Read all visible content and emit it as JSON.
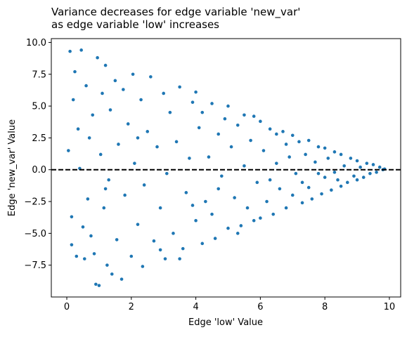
{
  "chart_data": {
    "type": "scatter",
    "title": "Variance decreases for edge variable 'new_var'\nas edge variable 'low' increases",
    "x_label": "Edge 'low' Value",
    "y_label": "Edge 'new_var' Value",
    "xlim": [
      -0.48,
      10.35
    ],
    "ylim": [
      -10.0,
      10.3
    ],
    "xticks": [
      0,
      2,
      4,
      6,
      8,
      10
    ],
    "yticks": [
      {
        "value": -7.5,
        "label": "−7.5"
      },
      {
        "value": -5,
        "label": "−5.0"
      },
      {
        "value": -2.5,
        "label": "−2.5"
      },
      {
        "value": 0,
        "label": "0.0"
      },
      {
        "value": 2.5,
        "label": "2.5"
      },
      {
        "value": 5,
        "label": "5.0"
      },
      {
        "value": 7.5,
        "label": "7.5"
      },
      {
        "value": 10,
        "label": "10.0"
      }
    ],
    "hline": 0,
    "series": [
      {
        "color": "#1f77b4",
        "x": [
          0.05,
          0.1,
          0.15,
          0.15,
          0.2,
          0.25,
          0.3,
          0.35,
          0.4,
          0.45,
          0.5,
          0.55,
          0.6,
          0.65,
          0.7,
          0.75,
          0.8,
          0.85,
          0.9,
          0.95,
          1.0,
          1.05,
          1.1,
          1.15,
          1.2,
          1.25,
          1.3,
          1.35,
          1.4,
          1.5,
          1.55,
          1.6,
          1.7,
          1.75,
          1.8,
          1.9,
          2.0,
          2.05,
          2.1,
          2.2,
          2.3,
          2.35,
          2.4,
          2.5,
          2.6,
          2.7,
          2.8,
          2.9,
          3.0,
          3.05,
          3.1,
          3.2,
          3.3,
          3.4,
          3.5,
          3.6,
          3.7,
          3.8,
          3.9,
          4.0,
          4.0,
          4.1,
          4.2,
          4.3,
          4.4,
          4.5,
          4.5,
          4.6,
          4.7,
          4.8,
          4.9,
          5.0,
          5.0,
          5.1,
          5.2,
          5.3,
          5.4,
          5.5,
          5.5,
          5.6,
          5.7,
          5.8,
          5.9,
          6.0,
          6.0,
          6.1,
          6.2,
          6.3,
          6.4,
          6.5,
          6.5,
          6.6,
          6.7,
          6.8,
          6.9,
          7.0,
          7.0,
          7.1,
          7.2,
          7.3,
          7.4,
          7.5,
          7.5,
          7.6,
          7.7,
          7.8,
          7.9,
          8.0,
          8.0,
          8.1,
          8.2,
          8.3,
          8.4,
          8.5,
          8.5,
          8.6,
          8.7,
          8.8,
          8.9,
          9.0,
          9.0,
          9.1,
          9.2,
          9.3,
          9.4,
          9.5,
          9.6,
          9.7,
          9.8,
          9.85,
          3.5,
          4.2,
          4.7,
          5.3,
          5.8,
          6.3,
          6.8,
          7.3,
          7.8,
          8.3,
          2.2,
          2.9,
          1.2,
          3.9
        ],
        "values": [
          1.5,
          9.3,
          -3.7,
          -5.9,
          5.5,
          7.7,
          -6.8,
          3.2,
          0.1,
          9.4,
          -4.5,
          -7.0,
          6.6,
          -2.3,
          2.5,
          -5.2,
          4.3,
          -6.6,
          -9.0,
          8.8,
          -9.1,
          1.2,
          6.0,
          -3.0,
          8.2,
          -7.5,
          -0.8,
          4.7,
          -8.2,
          7.0,
          -5.5,
          2.0,
          -8.6,
          6.3,
          -2.0,
          3.6,
          -6.8,
          7.5,
          0.5,
          -4.3,
          5.5,
          -7.6,
          -1.2,
          3.0,
          7.3,
          -5.6,
          1.8,
          -3.0,
          6.0,
          -7.0,
          -0.3,
          4.5,
          -5.0,
          2.2,
          6.5,
          -6.2,
          -1.8,
          0.9,
          5.3,
          -4.0,
          6.1,
          3.3,
          -5.8,
          -2.5,
          1.0,
          5.2,
          -3.5,
          -5.4,
          2.8,
          -0.5,
          4.0,
          -4.6,
          5.0,
          1.8,
          -2.2,
          3.5,
          -4.4,
          0.3,
          4.3,
          -3.0,
          2.3,
          -4.0,
          -1.0,
          3.8,
          -3.8,
          1.5,
          -2.5,
          3.2,
          -3.5,
          0.5,
          2.8,
          -1.5,
          3.0,
          -3.0,
          1.0,
          -2.0,
          2.7,
          -0.3,
          2.2,
          -2.6,
          1.2,
          -1.4,
          2.3,
          -2.3,
          0.6,
          1.8,
          -1.9,
          -0.6,
          1.7,
          0.9,
          -1.6,
          1.4,
          -0.8,
          1.2,
          -1.3,
          0.3,
          -1.0,
          0.9,
          -0.5,
          0.7,
          -0.8,
          0.2,
          -0.6,
          0.5,
          -0.3,
          0.4,
          -0.2,
          0.2,
          0.0,
          0.05,
          -7.0,
          4.5,
          -1.5,
          -5.0,
          4.2,
          -0.8,
          2.0,
          -1.0,
          -0.3,
          -0.2,
          2.5,
          -6.3,
          -1.5,
          -2.8
        ]
      }
    ]
  }
}
